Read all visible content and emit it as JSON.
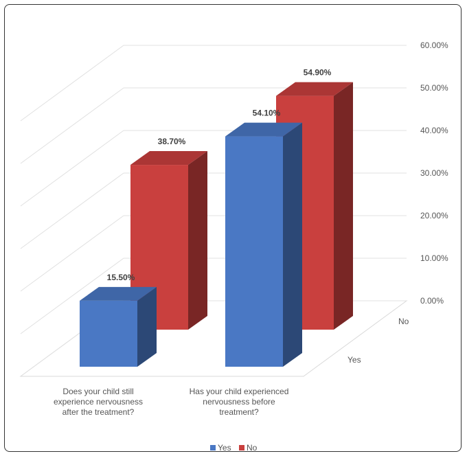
{
  "chart_data": {
    "type": "bar",
    "categories": [
      "Does your child still experience nervousness after the treatment?",
      "Has your child experienced nervousness before treatment?"
    ],
    "category_lines": [
      [
        "Does your child still",
        "experience nervousness",
        "after the treatment?"
      ],
      [
        "Has your child experienced",
        "nervousness before",
        "treatment?"
      ]
    ],
    "series": [
      {
        "name": "Yes",
        "values": [
          15.5,
          54.1
        ],
        "labels": [
          "15.50%",
          "54.10%"
        ],
        "color": "#4a78c4"
      },
      {
        "name": "No",
        "values": [
          38.7,
          54.9
        ],
        "labels": [
          "38.70%",
          "54.90%"
        ],
        "color": "#c9403e"
      }
    ],
    "y_ticks": [
      "0.00%",
      "10.00%",
      "20.00%",
      "30.00%",
      "40.00%",
      "50.00%",
      "60.00%"
    ],
    "series_axis_labels": [
      "Yes",
      "No"
    ],
    "ylim": [
      0,
      60
    ],
    "grid": true,
    "legend": "bottom",
    "title": "",
    "xlabel": "",
    "ylabel": ""
  }
}
